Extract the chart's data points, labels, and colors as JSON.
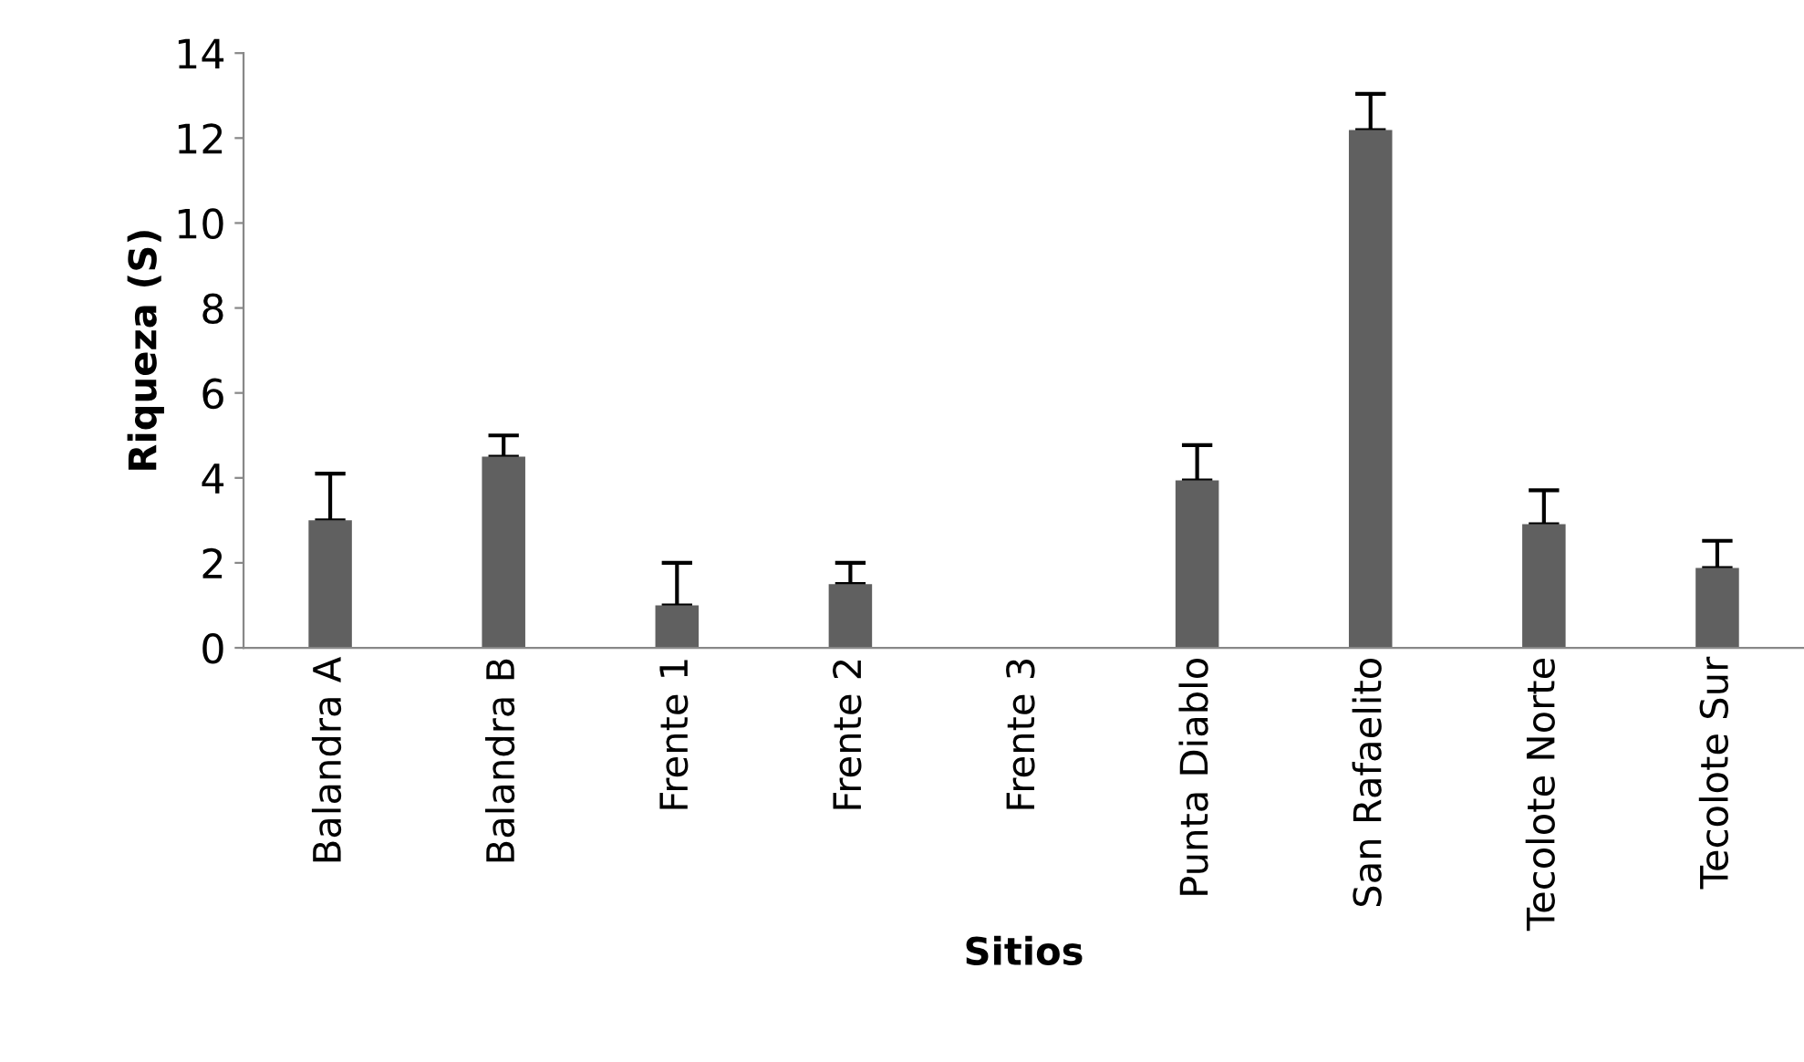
{
  "chart_data": {
    "type": "bar",
    "xlabel": "Sitios",
    "ylabel": "Riqueza (S)",
    "categories": [
      "Balandra A",
      "Balandra B",
      "Frente 1",
      "Frente 2",
      "Frente 3",
      "Punta Diablo",
      "San Rafaelito",
      "Tecolote Norte",
      "Tecolote Sur"
    ],
    "values": [
      3.0,
      4.5,
      1.0,
      1.5,
      0,
      3.94,
      12.19,
      2.91,
      1.88
    ],
    "errors": [
      [
        3.0,
        4.1
      ],
      [
        4.5,
        5.0
      ],
      [
        1.0,
        2.0
      ],
      [
        1.5,
        2.0
      ],
      null,
      [
        3.94,
        4.77
      ],
      [
        12.19,
        13.04
      ],
      [
        2.91,
        3.71
      ],
      [
        1.88,
        2.52
      ]
    ],
    "color": "#606060",
    "ylim": [
      0,
      14
    ],
    "yticks": [
      0,
      2,
      4,
      6,
      8,
      10,
      12,
      14
    ],
    "grid": false
  }
}
